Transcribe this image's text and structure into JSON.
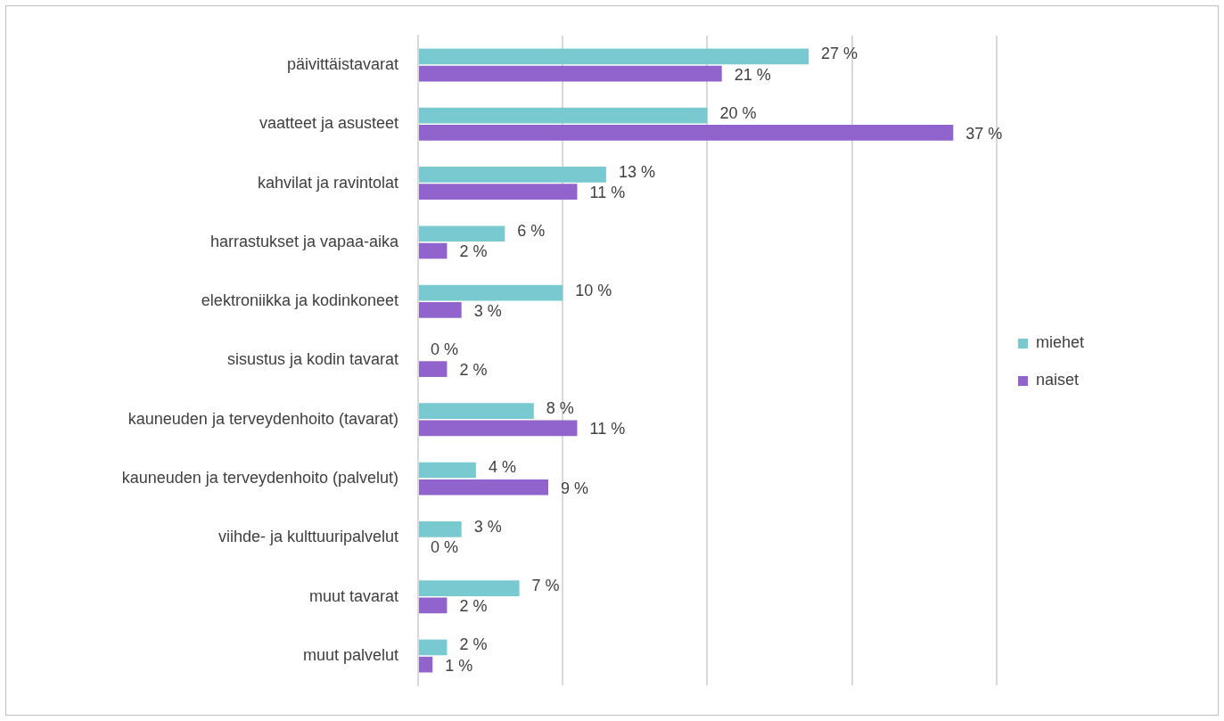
{
  "chart_data": {
    "type": "bar",
    "orientation": "horizontal",
    "categories": [
      "päivittäistavarat",
      "vaatteet ja asusteet",
      "kahvilat ja ravintolat",
      "harrastukset ja vapaa-aika",
      "elektroniikka ja kodinkoneet",
      "sisustus ja kodin tavarat",
      "kauneuden ja terveydenhoito (tavarat)",
      "kauneuden ja terveydenhoito (palvelut)",
      "viihde- ja kulttuuripalvelut",
      "muut tavarat",
      "muut palvelut"
    ],
    "series": [
      {
        "name": "miehet",
        "color": "#78c9d0",
        "values": [
          27,
          20,
          13,
          6,
          10,
          0,
          8,
          4,
          3,
          7,
          2
        ],
        "value_labels": [
          "27 %",
          "20 %",
          "13 %",
          "6 %",
          "10 %",
          "0 %",
          "8 %",
          "4 %",
          "3 %",
          "7 %",
          "2 %"
        ]
      },
      {
        "name": "naiset",
        "color": "#9064cc",
        "values": [
          21,
          37,
          11,
          2,
          3,
          2,
          11,
          9,
          0,
          2,
          1
        ],
        "value_labels": [
          "21 %",
          "37 %",
          "11 %",
          "2 %",
          "3 %",
          "2 %",
          "11 %",
          "9 %",
          "0 %",
          "2 %",
          "1 %"
        ]
      }
    ],
    "xlim": [
      0,
      40
    ],
    "xticks": [
      {
        "value": 0,
        "label": null
      },
      {
        "value": 10,
        "label": null
      },
      {
        "value": 20,
        "label": null
      },
      {
        "value": 30,
        "label": null
      },
      {
        "value": 40,
        "label": null
      }
    ],
    "tick_labels": "y",
    "grid": "x",
    "legend": "right"
  }
}
